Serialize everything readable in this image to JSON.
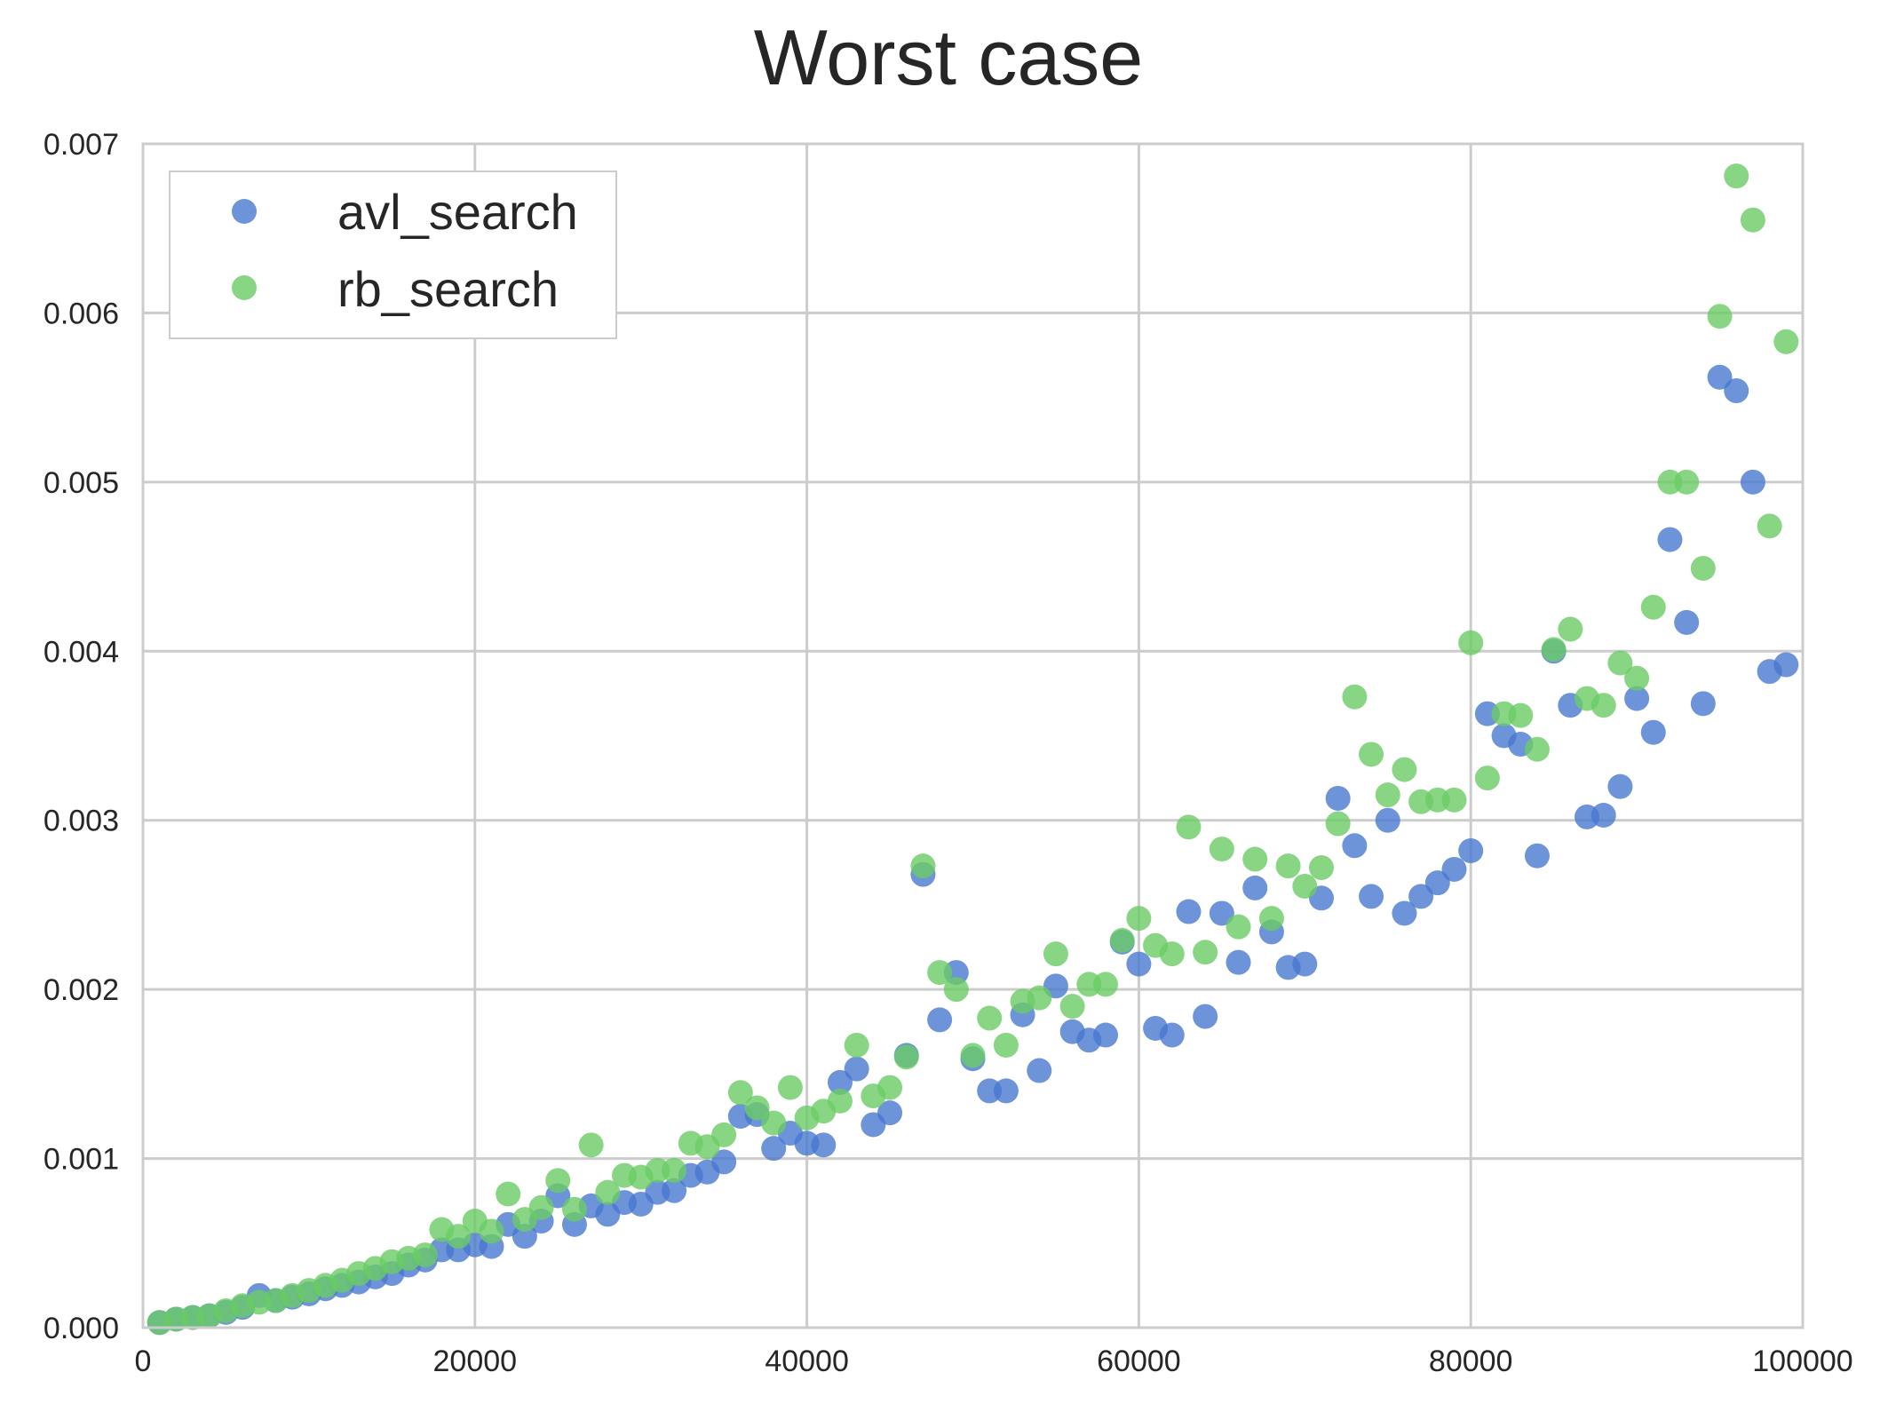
{
  "chart_data": {
    "type": "scatter",
    "title": "Worst case",
    "xlabel": "",
    "ylabel": "",
    "xlim": [
      0,
      100000
    ],
    "ylim": [
      0,
      0.007
    ],
    "xticks": [
      0,
      20000,
      40000,
      60000,
      80000,
      100000
    ],
    "xtick_labels": [
      "0",
      "20000",
      "40000",
      "60000",
      "80000",
      "100000"
    ],
    "yticks": [
      0,
      0.001,
      0.002,
      0.003,
      0.004,
      0.005,
      0.006,
      0.007
    ],
    "ytick_labels": [
      "0.000",
      "0.001",
      "0.002",
      "0.003",
      "0.004",
      "0.005",
      "0.006",
      "0.007"
    ],
    "grid": true,
    "legend_position": "top-left",
    "x": [
      1000,
      2000,
      3000,
      4000,
      5000,
      6000,
      7000,
      8000,
      9000,
      10000,
      11000,
      12000,
      13000,
      14000,
      15000,
      16000,
      17000,
      18000,
      19000,
      20000,
      21000,
      22000,
      23000,
      24000,
      25000,
      26000,
      27000,
      28000,
      29000,
      30000,
      31000,
      32000,
      33000,
      34000,
      35000,
      36000,
      37000,
      38000,
      39000,
      40000,
      41000,
      42000,
      43000,
      44000,
      45000,
      46000,
      47000,
      48000,
      49000,
      50000,
      51000,
      52000,
      53000,
      54000,
      55000,
      56000,
      57000,
      58000,
      59000,
      60000,
      61000,
      62000,
      63000,
      64000,
      65000,
      66000,
      67000,
      68000,
      69000,
      70000,
      71000,
      72000,
      73000,
      74000,
      75000,
      76000,
      77000,
      78000,
      79000,
      80000,
      81000,
      82000,
      83000,
      84000,
      85000,
      86000,
      87000,
      88000,
      89000,
      90000,
      91000,
      92000,
      93000,
      94000,
      95000,
      96000,
      97000,
      98000,
      99000
    ],
    "series": [
      {
        "name": "avl_search",
        "color": "#4878cf",
        "values": [
          3e-05,
          5e-05,
          6e-05,
          7e-05,
          9e-05,
          0.00012,
          0.00019,
          0.00016,
          0.00018,
          0.0002,
          0.00023,
          0.00025,
          0.00027,
          0.0003,
          0.00032,
          0.00037,
          0.0004,
          0.00046,
          0.00046,
          0.00049,
          0.00048,
          0.00061,
          0.00054,
          0.00063,
          0.00078,
          0.00061,
          0.00072,
          0.00067,
          0.00074,
          0.00073,
          0.0008,
          0.00081,
          0.0009,
          0.00092,
          0.00098,
          0.00125,
          0.00126,
          0.00106,
          0.00115,
          0.00109,
          0.00108,
          0.00145,
          0.00153,
          0.0012,
          0.00127,
          0.00161,
          0.00268,
          0.00182,
          0.0021,
          0.00159,
          0.0014,
          0.0014,
          0.00185,
          0.00152,
          0.00202,
          0.00175,
          0.0017,
          0.00173,
          0.00228,
          0.00215,
          0.00177,
          0.00173,
          0.00246,
          0.00184,
          0.00245,
          0.00216,
          0.0026,
          0.00234,
          0.00213,
          0.00215,
          0.00254,
          0.00313,
          0.00285,
          0.00255,
          0.003,
          0.00245,
          0.00255,
          0.00263,
          0.00271,
          0.00282,
          0.00363,
          0.0035,
          0.00345,
          0.00279,
          0.004,
          0.00368,
          0.00302,
          0.00303,
          0.0032,
          0.00372,
          0.00352,
          0.00466,
          0.00417,
          0.00369,
          0.00562,
          0.00554,
          0.005,
          0.00388,
          0.00392
        ]
      },
      {
        "name": "rb_search",
        "color": "#6acc65",
        "values": [
          3e-05,
          5e-05,
          6e-05,
          7e-05,
          0.0001,
          0.00013,
          0.00015,
          0.00016,
          0.00019,
          0.00022,
          0.00025,
          0.00028,
          0.00032,
          0.00035,
          0.00039,
          0.00041,
          0.00043,
          0.00058,
          0.00054,
          0.00063,
          0.00057,
          0.00079,
          0.00064,
          0.00071,
          0.00087,
          0.0007,
          0.00108,
          0.0008,
          0.0009,
          0.00089,
          0.00093,
          0.00093,
          0.00109,
          0.00107,
          0.00114,
          0.00139,
          0.0013,
          0.00121,
          0.00142,
          0.00124,
          0.00128,
          0.00134,
          0.00167,
          0.00137,
          0.00142,
          0.0016,
          0.00273,
          0.0021,
          0.002,
          0.00161,
          0.00183,
          0.00167,
          0.00193,
          0.00195,
          0.00221,
          0.0019,
          0.00203,
          0.00203,
          0.00229,
          0.00242,
          0.00226,
          0.00221,
          0.00296,
          0.00222,
          0.00283,
          0.00237,
          0.00277,
          0.00242,
          0.00273,
          0.00261,
          0.00272,
          0.00298,
          0.00373,
          0.00339,
          0.00315,
          0.0033,
          0.00311,
          0.00312,
          0.00312,
          0.00405,
          0.00325,
          0.00363,
          0.00362,
          0.00342,
          0.00401,
          0.00413,
          0.00372,
          0.00368,
          0.00393,
          0.00384,
          0.00426,
          0.005,
          0.005,
          0.00449,
          0.00598,
          0.00681,
          0.00655,
          0.00474,
          0.00583
        ]
      }
    ]
  }
}
